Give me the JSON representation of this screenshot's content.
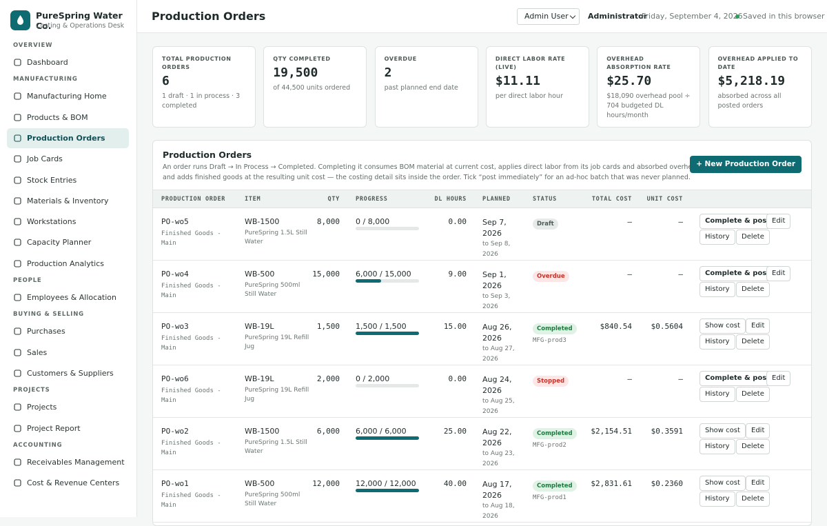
{
  "brand": {
    "name": "PureSpring Water Co.",
    "subtitle": "Costing & Operations Desk"
  },
  "nav": [
    {
      "title": "OVERVIEW",
      "items": [
        {
          "label": "Dashboard"
        }
      ]
    },
    {
      "title": "MANUFACTURING",
      "items": [
        {
          "label": "Manufacturing Home"
        },
        {
          "label": "Products & BOM"
        },
        {
          "label": "Production Orders",
          "active": true
        },
        {
          "label": "Job Cards"
        },
        {
          "label": "Stock Entries"
        },
        {
          "label": "Materials & Inventory"
        },
        {
          "label": "Workstations"
        },
        {
          "label": "Capacity Planner"
        },
        {
          "label": "Production Analytics"
        }
      ]
    },
    {
      "title": "PEOPLE",
      "items": [
        {
          "label": "Employees & Allocation"
        }
      ]
    },
    {
      "title": "BUYING & SELLING",
      "items": [
        {
          "label": "Purchases"
        },
        {
          "label": "Sales"
        },
        {
          "label": "Customers & Suppliers"
        }
      ]
    },
    {
      "title": "PROJECTS",
      "items": [
        {
          "label": "Projects"
        },
        {
          "label": "Project Report"
        }
      ]
    },
    {
      "title": "ACCOUNTING",
      "items": [
        {
          "label": "Receivables Management"
        },
        {
          "label": "Cost & Revenue Centers"
        }
      ]
    }
  ],
  "header": {
    "title": "Production Orders",
    "user": "Admin User",
    "role": "Administrator",
    "date": "Friday, September 4, 2026",
    "saved": "Saved in this browser"
  },
  "kpis": [
    {
      "label": "TOTAL PRODUCTION ORDERS",
      "value": "6",
      "note": "1 draft · 1 in process · 3 completed"
    },
    {
      "label": "QTY COMPLETED",
      "value": "19,500",
      "note": "of 44,500 units ordered"
    },
    {
      "label": "OVERDUE",
      "value": "2",
      "note": "past planned end date"
    },
    {
      "label": "DIRECT LABOR RATE (LIVE)",
      "value": "$11.11",
      "note": "per direct labor hour"
    },
    {
      "label": "OVERHEAD ABSORPTION RATE",
      "value": "$25.70",
      "note": "$18,090 overhead pool ÷ 704 budgeted DL hours/month"
    },
    {
      "label": "OVERHEAD APPLIED TO DATE",
      "value": "$5,218.19",
      "note": "absorbed across all posted orders"
    }
  ],
  "panel": {
    "title": "Production Orders",
    "description": "An order runs Draft → In Process → Completed. Completing it consumes BOM material at current cost, applies direct labor from its job cards and absorbed overhead, and adds finished goods at the resulting unit cost — the costing detail sits inside the order. Tick “post immediately” for an ad-hoc batch that was never planned.",
    "button": "+ New Production Order"
  },
  "table": {
    "columns": [
      "PRODUCTION ORDER",
      "ITEM",
      "QTY",
      "PROGRESS",
      "DL HOURS",
      "PLANNED",
      "STATUS",
      "TOTAL COST",
      "UNIT COST"
    ],
    "rows": [
      {
        "order": "PO-wo5",
        "location": "Finished Goods - Main",
        "item": "WB-1500",
        "item_name": "PureSpring 1.5L Still Water",
        "qty": "8,000",
        "progress": {
          "label": "0 / 8,000",
          "done": 0,
          "total": 8000
        },
        "dl_hours": "0.00",
        "planned": "Sep 7, 2026",
        "planned_to": "to Sep 8, 2026",
        "status": {
          "label": "Draft",
          "tone": "neutral"
        },
        "total_cost": "—",
        "unit_cost": "—",
        "actions": [
          "Complete & post",
          "Edit",
          "History",
          "Delete"
        ]
      },
      {
        "order": "PO-wo4",
        "location": "Finished Goods - Main",
        "item": "WB-500",
        "item_name": "PureSpring 500ml Still Water",
        "qty": "15,000",
        "progress": {
          "label": "6,000 / 15,000",
          "done": 6000,
          "total": 15000
        },
        "dl_hours": "9.00",
        "planned": "Sep 1, 2026",
        "planned_to": "to Sep 3, 2026",
        "status": {
          "label": "Overdue",
          "tone": "danger"
        },
        "total_cost": "—",
        "unit_cost": "—",
        "actions": [
          "Complete & post",
          "Edit",
          "History",
          "Delete"
        ]
      },
      {
        "order": "PO-wo3",
        "location": "Finished Goods - Main",
        "item": "WB-19L",
        "item_name": "PureSpring 19L Refill Jug",
        "qty": "1,500",
        "progress": {
          "label": "1,500 / 1,500",
          "done": 1500,
          "total": 1500
        },
        "dl_hours": "15.00",
        "planned": "Aug 26, 2026",
        "planned_to": "to Aug 27, 2026",
        "status": {
          "label": "Completed",
          "tone": "success",
          "note": "MFG-prod3"
        },
        "total_cost": "$840.54",
        "unit_cost": "$0.5604",
        "actions": [
          "Show cost",
          "Edit",
          "History",
          "Delete"
        ]
      },
      {
        "order": "PO-wo6",
        "location": "Finished Goods - Main",
        "item": "WB-19L",
        "item_name": "PureSpring 19L Refill Jug",
        "qty": "2,000",
        "progress": {
          "label": "0 / 2,000",
          "done": 0,
          "total": 2000
        },
        "dl_hours": "0.00",
        "planned": "Aug 24, 2026",
        "planned_to": "to Aug 25, 2026",
        "status": {
          "label": "Stopped",
          "tone": "danger"
        },
        "total_cost": "—",
        "unit_cost": "—",
        "actions": [
          "Complete & post",
          "Edit",
          "History",
          "Delete"
        ]
      },
      {
        "order": "PO-wo2",
        "location": "Finished Goods - Main",
        "item": "WB-1500",
        "item_name": "PureSpring 1.5L Still Water",
        "qty": "6,000",
        "progress": {
          "label": "6,000 / 6,000",
          "done": 6000,
          "total": 6000
        },
        "dl_hours": "25.00",
        "planned": "Aug 22, 2026",
        "planned_to": "to Aug 23, 2026",
        "status": {
          "label": "Completed",
          "tone": "success",
          "note": "MFG-prod2"
        },
        "total_cost": "$2,154.51",
        "unit_cost": "$0.3591",
        "actions": [
          "Show cost",
          "Edit",
          "History",
          "Delete"
        ]
      },
      {
        "order": "PO-wo1",
        "location": "Finished Goods - Main",
        "item": "WB-500",
        "item_name": "PureSpring 500ml Still Water",
        "qty": "12,000",
        "progress": {
          "label": "12,000 / 12,000",
          "done": 12000,
          "total": 12000
        },
        "dl_hours": "40.00",
        "planned": "Aug 17, 2026",
        "planned_to": "to Aug 18, 2026",
        "status": {
          "label": "Completed",
          "tone": "success",
          "note": "MFG-prod1"
        },
        "total_cost": "$2,831.61",
        "unit_cost": "$0.2360",
        "actions": [
          "Show cost",
          "Edit",
          "History",
          "Delete"
        ]
      }
    ]
  }
}
